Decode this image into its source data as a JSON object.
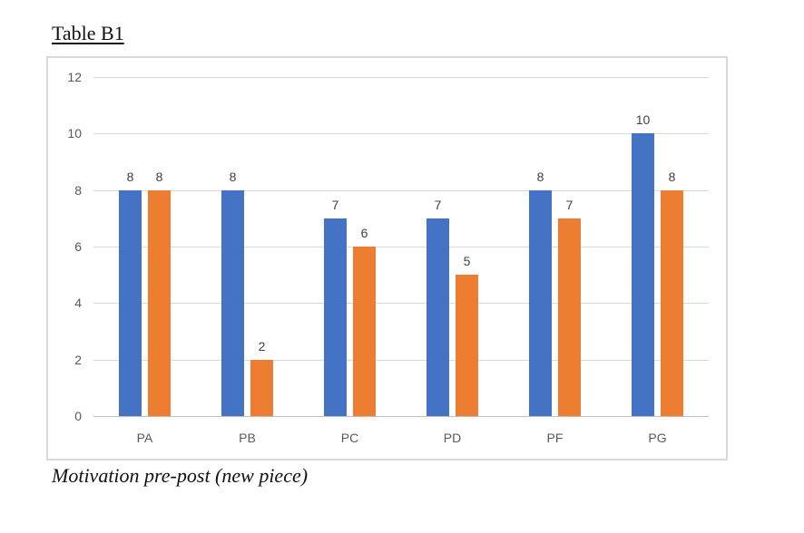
{
  "title": "Table B1",
  "caption": "Motivation pre-post (new piece)",
  "chart_data": {
    "type": "bar",
    "title": "Table B1",
    "subtitle": "Motivation pre-post (new piece)",
    "categories": [
      "PA",
      "PB",
      "PC",
      "PD",
      "PF",
      "PG"
    ],
    "series": [
      {
        "color": "#4472C4",
        "values": [
          8,
          8,
          7,
          7,
          8,
          10
        ]
      },
      {
        "color": "#ED7D31",
        "values": [
          8,
          2,
          6,
          5,
          7,
          8
        ]
      }
    ],
    "xlabel": "",
    "ylabel": "",
    "ylim": [
      0,
      12
    ],
    "yticks": [
      0,
      2,
      4,
      6,
      8,
      10,
      12
    ],
    "grid": true,
    "legend": "none",
    "data_labels": true
  },
  "colors": {
    "gridline": "#D9D9D9",
    "axis_line": "#BFBFBF",
    "axis_label": "#595959",
    "value_label": "#404040",
    "frame_border": "#D9D9D9"
  }
}
